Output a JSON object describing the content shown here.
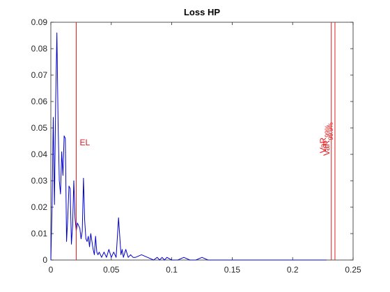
{
  "chart_data": {
    "type": "line",
    "title": "Loss HP",
    "xlabel": "",
    "ylabel": "",
    "xlim": [
      0,
      0.25
    ],
    "ylim": [
      0,
      0.09
    ],
    "x_ticks": [
      0,
      0.05,
      0.1,
      0.15,
      0.2,
      0.25
    ],
    "x_tick_labels": [
      "0",
      "0.05",
      "0.1",
      "0.15",
      "0.2",
      "0.25"
    ],
    "y_ticks": [
      0,
      0.01,
      0.02,
      0.03,
      0.04,
      0.05,
      0.06,
      0.07,
      0.08,
      0.09
    ],
    "y_tick_labels": [
      "0",
      "0.01",
      "0.02",
      "0.03",
      "0.04",
      "0.05",
      "0.06",
      "0.07",
      "0.08",
      "0.09"
    ],
    "grid": false,
    "colors": {
      "series": "#0000cc",
      "markers": "#e31a1c",
      "axes": "#262626"
    },
    "series": [
      {
        "name": "",
        "x": [
          0.0,
          0.001,
          0.002,
          0.003,
          0.004,
          0.005,
          0.006,
          0.007,
          0.008,
          0.009,
          0.01,
          0.011,
          0.012,
          0.013,
          0.014,
          0.015,
          0.016,
          0.017,
          0.018,
          0.019,
          0.02,
          0.021,
          0.022,
          0.023,
          0.024,
          0.025,
          0.026,
          0.027,
          0.028,
          0.029,
          0.03,
          0.031,
          0.032,
          0.033,
          0.034,
          0.035,
          0.036,
          0.037,
          0.038,
          0.039,
          0.04,
          0.042,
          0.044,
          0.046,
          0.048,
          0.05,
          0.052,
          0.054,
          0.056,
          0.057,
          0.058,
          0.059,
          0.06,
          0.062,
          0.064,
          0.066,
          0.068,
          0.07,
          0.075,
          0.08,
          0.085,
          0.088,
          0.09,
          0.092,
          0.094,
          0.096,
          0.1,
          0.105,
          0.11,
          0.115,
          0.12,
          0.125,
          0.13,
          0.14,
          0.15,
          0.17,
          0.2,
          0.228
        ],
        "y": [
          0.0,
          0.02,
          0.054,
          0.021,
          0.06,
          0.086,
          0.052,
          0.03,
          0.025,
          0.041,
          0.032,
          0.047,
          0.046,
          0.007,
          0.016,
          0.028,
          0.027,
          0.006,
          0.013,
          0.03,
          0.016,
          0.011,
          0.014,
          0.013,
          0.012,
          0.008,
          0.011,
          0.031,
          0.015,
          0.008,
          0.007,
          0.009,
          0.005,
          0.01,
          0.007,
          0.004,
          0.002,
          0.009,
          0.003,
          0.002,
          0.003,
          0.001,
          0.003,
          0.001,
          0.004,
          0.001,
          0.003,
          0.001,
          0.016,
          0.009,
          0.002,
          0.004,
          0.001,
          0.004,
          0.001,
          0.002,
          0.001,
          0.001,
          0.002,
          0.001,
          0.0,
          0.001,
          0.0,
          0.001,
          0.0,
          0.001,
          0.0,
          0.0,
          0.001,
          0.0,
          0.0,
          0.001,
          0.0,
          0.0,
          0.0,
          0.0,
          0.0,
          0.0
        ]
      }
    ],
    "vlines": [
      {
        "x": 0.021,
        "label": "EL",
        "label_sub": ""
      },
      {
        "x": 0.232,
        "label": "VaR",
        "label_sub": "99%"
      },
      {
        "x": 0.235,
        "label": "VaR",
        "label_sub": "99.9%"
      }
    ]
  }
}
